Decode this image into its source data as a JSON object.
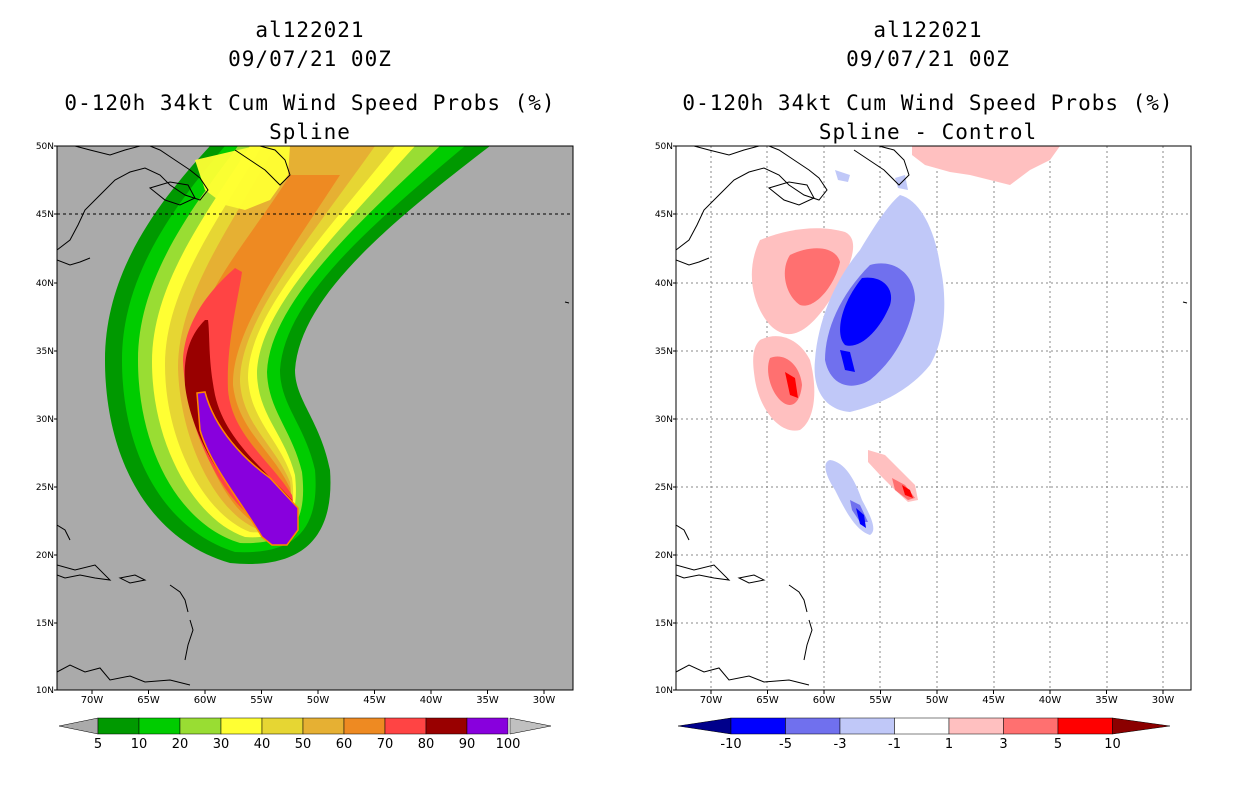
{
  "left": {
    "title_line1": "al122021",
    "title_line2": "09/07/21 00Z",
    "title_line3": "0-120h 34kt Cum Wind Speed Probs (%)",
    "title_line4": "Spline",
    "colorbar": {
      "labels": [
        "5",
        "10",
        "20",
        "30",
        "40",
        "50",
        "60",
        "70",
        "80",
        "90",
        "100"
      ],
      "colors": [
        "#009900",
        "#00cc00",
        "#99dd33",
        "#ffff33",
        "#e6d633",
        "#e6b033",
        "#ee8a22",
        "#ff4444",
        "#990000",
        "#8800dd",
        "#c0c0c0"
      ]
    }
  },
  "right": {
    "title_line1": "al122021",
    "title_line2": "09/07/21 00Z",
    "title_line3": "0-120h 34kt Cum Wind Speed Probs (%)",
    "title_line4": "Spline - Control",
    "colorbar": {
      "labels": [
        "-10",
        "-5",
        "-3",
        "-1",
        "1",
        "3",
        "5",
        "10"
      ],
      "colors": [
        "#00008b",
        "#0000ff",
        "#7070ee",
        "#c0c8f8",
        "#ffffff",
        "#ffc0c0",
        "#ff7070",
        "#ff0000",
        "#8b0000"
      ]
    }
  },
  "axes": {
    "lat_labels": [
      "50N",
      "45N",
      "40N",
      "35N",
      "30N",
      "25N",
      "20N",
      "15N",
      "10N"
    ],
    "lon_labels": [
      "70W",
      "65W",
      "60W",
      "55W",
      "50W",
      "45W",
      "40W",
      "35W",
      "30W"
    ]
  },
  "colors": {
    "land_gray": "#aaaaaa",
    "frame": "#000000"
  }
}
